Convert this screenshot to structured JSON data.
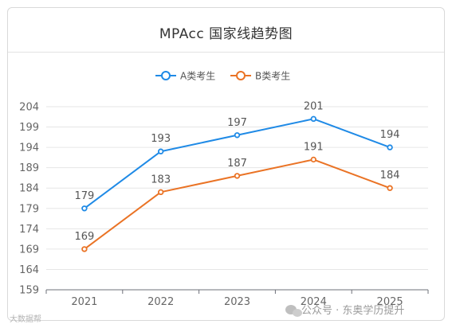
{
  "chart_data": {
    "type": "line",
    "title": "MPAcc 国家线趋势图",
    "categories": [
      "2021",
      "2022",
      "2023",
      "2024",
      "2025"
    ],
    "series": [
      {
        "name": "A类考生",
        "color": "#1f8ae6",
        "values": [
          179,
          193,
          197,
          201,
          194
        ]
      },
      {
        "name": "B类考生",
        "color": "#ea7325",
        "values": [
          169,
          183,
          187,
          191,
          184
        ]
      }
    ],
    "yticks": [
      159,
      164,
      169,
      174,
      179,
      184,
      189,
      194,
      199,
      204
    ],
    "ylim": [
      159,
      204
    ],
    "grid": true,
    "legend": "top-center"
  },
  "watermark": {
    "text": "公众号 · 东奥学历提升",
    "icon": "wechat-icon",
    "corner_text": "大数据帮"
  }
}
